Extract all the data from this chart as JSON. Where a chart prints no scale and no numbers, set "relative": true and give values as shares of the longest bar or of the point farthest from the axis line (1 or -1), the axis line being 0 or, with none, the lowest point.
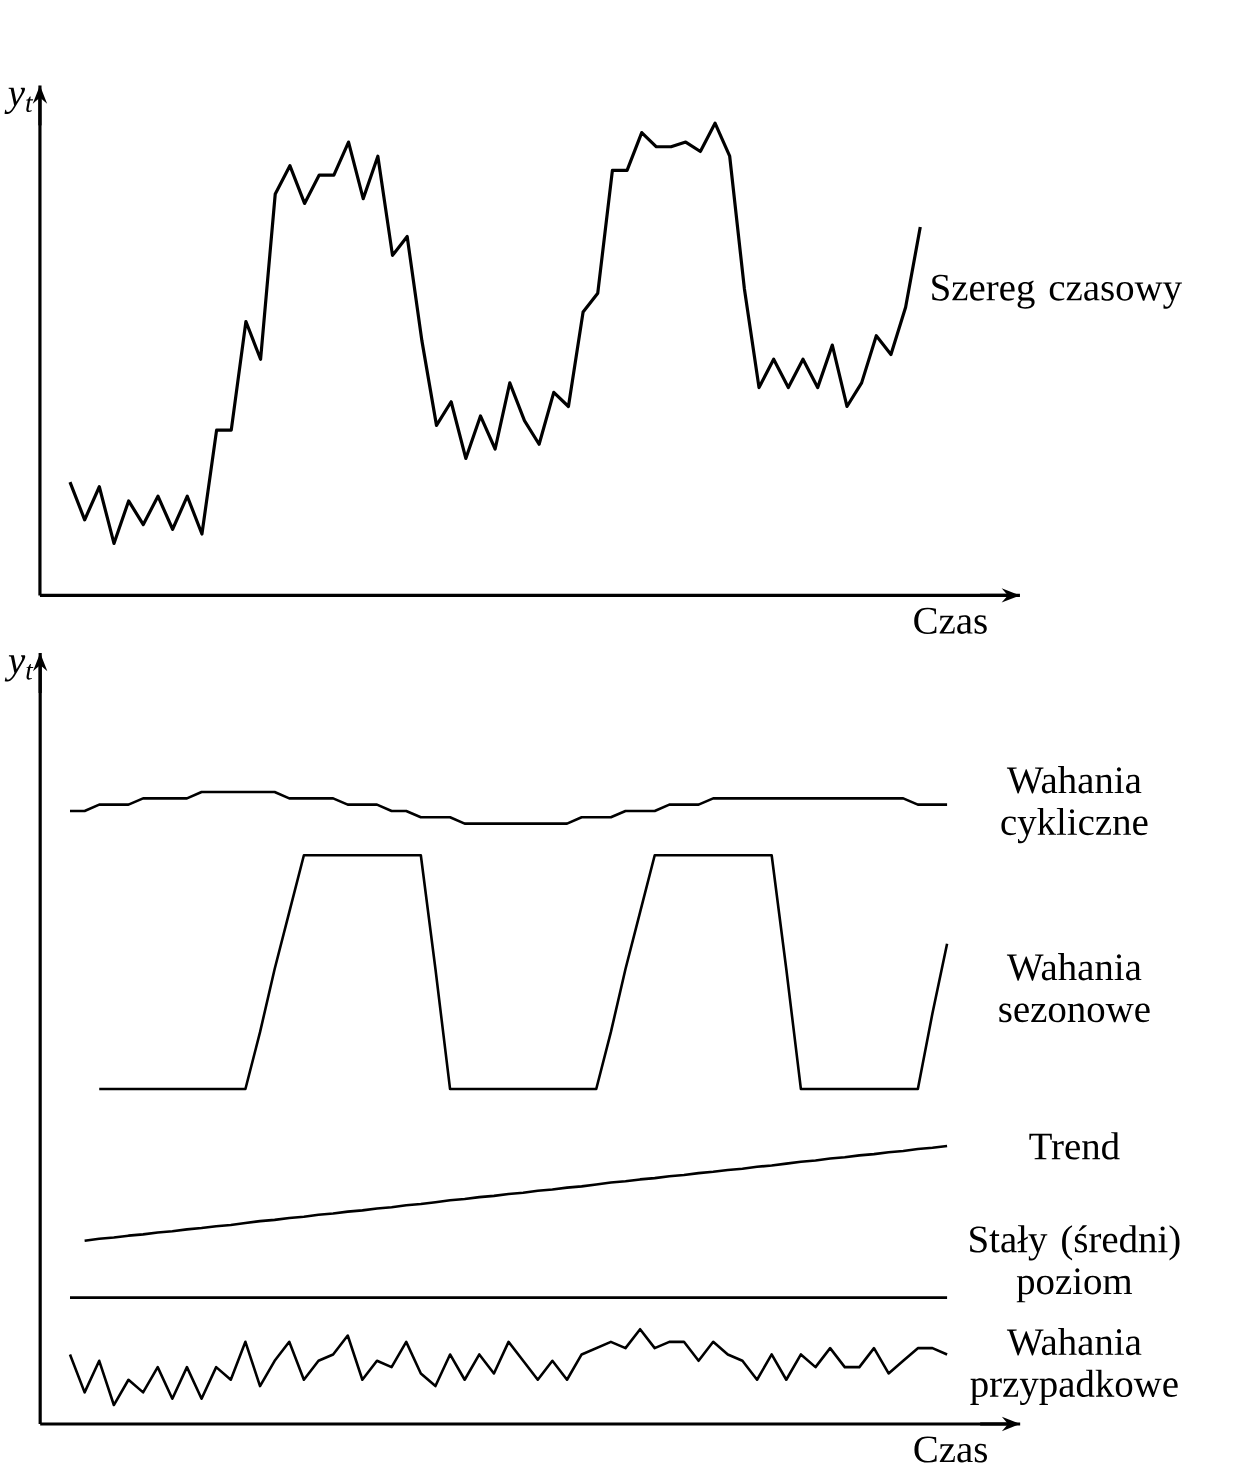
{
  "chart_data": [
    {
      "type": "line",
      "relative": true,
      "xlabel": "Czas",
      "ylabel": "y$_{t}$",
      "categories": [
        null,
        null,
        null,
        null,
        null,
        null,
        null,
        null,
        null,
        null,
        null,
        null,
        null,
        null,
        null,
        null,
        null,
        null,
        null,
        null,
        null,
        null,
        null,
        null,
        null,
        null,
        null,
        null,
        null,
        null,
        null,
        null,
        null,
        null,
        null,
        null,
        null,
        null,
        null,
        null,
        null,
        null,
        null,
        null,
        null,
        null,
        null,
        null,
        null,
        null,
        null,
        null,
        null,
        null,
        null,
        null,
        null,
        null,
        null
      ],
      "series": [
        {
          "name": "Szereg czasowy",
          "color": "#000000",
          "values": [
            0.24,
            0.16,
            0.23,
            0.11,
            0.2,
            0.15,
            0.21,
            0.14,
            0.21,
            0.13,
            0.35,
            0.35,
            0.58,
            0.5,
            0.85,
            0.91,
            0.83,
            0.89,
            0.89,
            0.96,
            0.84,
            0.93,
            0.72,
            0.76,
            0.54,
            0.36,
            0.41,
            0.29,
            0.38,
            0.31,
            0.45,
            0.37,
            0.32,
            0.43,
            0.4,
            0.6,
            0.64,
            0.9,
            0.9,
            0.98,
            0.95,
            0.95,
            0.96,
            0.94,
            1.0,
            0.93,
            0.65,
            0.44,
            0.5,
            0.44,
            0.5,
            0.44,
            0.53,
            0.4,
            0.45,
            0.55,
            0.51,
            0.61,
            0.78
          ]
        }
      ]
    },
    {
      "type": "line",
      "relative": true,
      "xlabel": "Czas",
      "ylabel": "y$_{t}$",
      "categories": [
        null,
        null,
        null,
        null,
        null,
        null,
        null,
        null,
        null,
        null,
        null,
        null,
        null,
        null,
        null,
        null,
        null,
        null,
        null,
        null,
        null,
        null,
        null,
        null,
        null,
        null,
        null,
        null,
        null,
        null,
        null,
        null,
        null,
        null,
        null,
        null,
        null,
        null,
        null,
        null,
        null,
        null,
        null,
        null,
        null,
        null,
        null,
        null,
        null,
        null,
        null,
        null,
        null,
        null,
        null,
        null,
        null,
        null,
        null,
        null,
        null
      ],
      "series": [
        {
          "name": "Wahania cykliczne",
          "color": "#000000",
          "values": [
            0.97,
            0.97,
            0.98,
            0.98,
            0.98,
            0.99,
            0.99,
            0.99,
            0.99,
            1.0,
            1.0,
            1.0,
            1.0,
            1.0,
            1.0,
            0.99,
            0.99,
            0.99,
            0.99,
            0.98,
            0.98,
            0.98,
            0.97,
            0.97,
            0.96,
            0.96,
            0.96,
            0.95,
            0.95,
            0.95,
            0.95,
            0.95,
            0.95,
            0.95,
            0.95,
            0.96,
            0.96,
            0.96,
            0.97,
            0.97,
            0.97,
            0.98,
            0.98,
            0.98,
            0.99,
            0.99,
            0.99,
            0.99,
            0.99,
            0.99,
            0.99,
            0.99,
            0.99,
            0.99,
            0.99,
            0.99,
            0.99,
            0.99,
            0.98,
            0.98,
            0.98
          ]
        },
        {
          "name": "Wahania sezonowe",
          "color": "#000000",
          "values": [
            null,
            null,
            0.53,
            0.53,
            0.53,
            0.53,
            0.53,
            0.53,
            0.53,
            0.53,
            0.53,
            0.53,
            0.53,
            0.62,
            0.72,
            0.81,
            0.9,
            0.9,
            0.9,
            0.9,
            0.9,
            0.9,
            0.9,
            0.9,
            0.9,
            0.72,
            0.53,
            0.53,
            0.53,
            0.53,
            0.53,
            0.53,
            0.53,
            0.53,
            0.53,
            0.53,
            0.53,
            0.62,
            0.72,
            0.81,
            0.9,
            0.9,
            0.9,
            0.9,
            0.9,
            0.9,
            0.9,
            0.9,
            0.9,
            0.72,
            0.53,
            0.53,
            0.53,
            0.53,
            0.53,
            0.53,
            0.53,
            0.53,
            0.53,
            0.65,
            0.76
          ]
        },
        {
          "name": "Trend",
          "color": "#000000",
          "values": [
            null,
            0.29,
            0.293,
            0.295,
            0.298,
            0.3,
            0.303,
            0.305,
            0.308,
            0.31,
            0.313,
            0.315,
            0.318,
            0.321,
            0.323,
            0.326,
            0.328,
            0.331,
            0.333,
            0.336,
            0.338,
            0.341,
            0.343,
            0.346,
            0.348,
            0.351,
            0.354,
            0.356,
            0.359,
            0.361,
            0.364,
            0.366,
            0.369,
            0.371,
            0.374,
            0.376,
            0.379,
            0.382,
            0.384,
            0.387,
            0.389,
            0.392,
            0.394,
            0.397,
            0.399,
            0.402,
            0.404,
            0.407,
            0.409,
            0.412,
            0.415,
            0.417,
            0.42,
            0.422,
            0.425,
            0.427,
            0.43,
            0.432,
            0.435,
            0.437,
            0.44
          ]
        },
        {
          "name": "Stały (średni) poziom",
          "color": "#000000",
          "values": [
            0.2,
            0.2,
            0.2,
            0.2,
            0.2,
            0.2,
            0.2,
            0.2,
            0.2,
            0.2,
            0.2,
            0.2,
            0.2,
            0.2,
            0.2,
            0.2,
            0.2,
            0.2,
            0.2,
            0.2,
            0.2,
            0.2,
            0.2,
            0.2,
            0.2,
            0.2,
            0.2,
            0.2,
            0.2,
            0.2,
            0.2,
            0.2,
            0.2,
            0.2,
            0.2,
            0.2,
            0.2,
            0.2,
            0.2,
            0.2,
            0.2,
            0.2,
            0.2,
            0.2,
            0.2,
            0.2,
            0.2,
            0.2,
            0.2,
            0.2,
            0.2,
            0.2,
            0.2,
            0.2,
            0.2,
            0.2,
            0.2,
            0.2,
            0.2,
            0.2,
            0.2
          ]
        },
        {
          "name": "Wahania przypadkowe",
          "color": "#000000",
          "values": [
            0.11,
            0.05,
            0.1,
            0.03,
            0.07,
            0.05,
            0.09,
            0.04,
            0.09,
            0.04,
            0.09,
            0.07,
            0.13,
            0.06,
            0.1,
            0.13,
            0.07,
            0.1,
            0.11,
            0.14,
            0.07,
            0.1,
            0.09,
            0.13,
            0.08,
            0.06,
            0.11,
            0.07,
            0.11,
            0.08,
            0.13,
            0.1,
            0.07,
            0.1,
            0.07,
            0.11,
            0.12,
            0.13,
            0.12,
            0.15,
            0.12,
            0.13,
            0.13,
            0.1,
            0.13,
            0.11,
            0.1,
            0.07,
            0.11,
            0.07,
            0.11,
            0.09,
            0.12,
            0.09,
            0.09,
            0.12,
            0.08,
            0.1,
            0.12,
            0.12,
            0.11
          ]
        }
      ]
    }
  ]
}
